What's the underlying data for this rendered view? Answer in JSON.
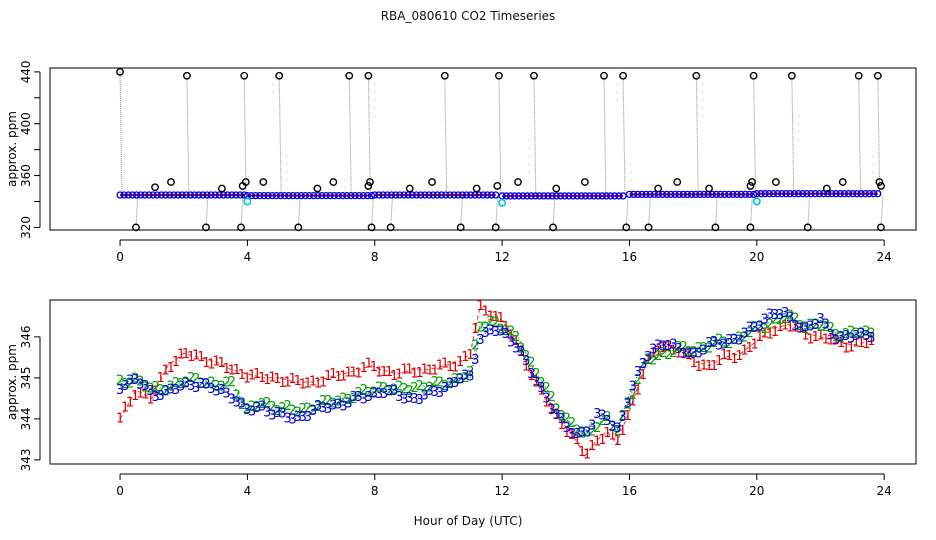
{
  "title": "RBA_080610  CO2 Timeseries",
  "xlabel": "Hour of Day (UTC)",
  "colors": {
    "raw": "#000000",
    "flag": "#00c8d8",
    "level1": "#e00000",
    "level2": "#00a000",
    "level3": "#0000e0",
    "connector": "#888888"
  },
  "chart_data": [
    {
      "type": "scatter",
      "title": "RBA_080610  CO2 Timeseries",
      "ylabel": "approx. ppm",
      "xlim": [
        -2.2,
        25
      ],
      "ylim": [
        318,
        443
      ],
      "xticks": [
        0,
        4,
        8,
        12,
        16,
        20,
        24
      ],
      "yticks": [
        320,
        360,
        400,
        440
      ],
      "yticks_minor": [
        340,
        380,
        420
      ],
      "baseline_segments": [
        {
          "x_start": 0.0,
          "x_end": 3.9,
          "value": 345
        },
        {
          "x_start": 4.0,
          "x_end": 7.9,
          "value": 344.5
        },
        {
          "x_start": 8.0,
          "x_end": 11.8,
          "value": 345
        },
        {
          "x_start": 12.0,
          "x_end": 15.8,
          "value": 344.3
        },
        {
          "x_start": 16.0,
          "x_end": 19.9,
          "value": 345.5
        },
        {
          "x_start": 20.0,
          "x_end": 23.8,
          "value": 346
        }
      ],
      "high_spikes": [
        {
          "x": 0.0,
          "y": 440
        },
        {
          "x": 2.1,
          "y": 437
        },
        {
          "x": 3.9,
          "y": 437
        },
        {
          "x": 5.0,
          "y": 437
        },
        {
          "x": 7.2,
          "y": 437
        },
        {
          "x": 7.8,
          "y": 437
        },
        {
          "x": 10.2,
          "y": 437
        },
        {
          "x": 11.9,
          "y": 437
        },
        {
          "x": 13.0,
          "y": 437
        },
        {
          "x": 15.2,
          "y": 437
        },
        {
          "x": 15.8,
          "y": 437
        },
        {
          "x": 18.1,
          "y": 437
        },
        {
          "x": 19.9,
          "y": 437
        },
        {
          "x": 21.1,
          "y": 437
        },
        {
          "x": 23.2,
          "y": 437
        },
        {
          "x": 23.8,
          "y": 437
        }
      ],
      "low_spikes": [
        {
          "x": 0.5,
          "y": 320
        },
        {
          "x": 2.7,
          "y": 320
        },
        {
          "x": 3.8,
          "y": 320
        },
        {
          "x": 5.6,
          "y": 320
        },
        {
          "x": 7.9,
          "y": 320
        },
        {
          "x": 8.5,
          "y": 320
        },
        {
          "x": 10.7,
          "y": 320
        },
        {
          "x": 11.8,
          "y": 320
        },
        {
          "x": 13.6,
          "y": 320
        },
        {
          "x": 15.9,
          "y": 320
        },
        {
          "x": 16.6,
          "y": 320
        },
        {
          "x": 18.7,
          "y": 320
        },
        {
          "x": 19.8,
          "y": 320
        },
        {
          "x": 21.6,
          "y": 320
        },
        {
          "x": 23.9,
          "y": 320
        }
      ],
      "mid_outliers": [
        {
          "x": 1.1,
          "y": 351
        },
        {
          "x": 1.6,
          "y": 355
        },
        {
          "x": 3.2,
          "y": 350
        },
        {
          "x": 3.85,
          "y": 352
        },
        {
          "x": 3.95,
          "y": 355
        },
        {
          "x": 4.5,
          "y": 355
        },
        {
          "x": 6.2,
          "y": 350
        },
        {
          "x": 6.7,
          "y": 355
        },
        {
          "x": 7.8,
          "y": 352
        },
        {
          "x": 7.85,
          "y": 355
        },
        {
          "x": 9.1,
          "y": 350
        },
        {
          "x": 9.8,
          "y": 355
        },
        {
          "x": 11.2,
          "y": 350
        },
        {
          "x": 11.85,
          "y": 352
        },
        {
          "x": 12.5,
          "y": 355
        },
        {
          "x": 13.7,
          "y": 350
        },
        {
          "x": 14.6,
          "y": 355
        },
        {
          "x": 16.9,
          "y": 350
        },
        {
          "x": 17.5,
          "y": 355
        },
        {
          "x": 18.5,
          "y": 350
        },
        {
          "x": 19.8,
          "y": 352
        },
        {
          "x": 19.85,
          "y": 355
        },
        {
          "x": 20.6,
          "y": 355
        },
        {
          "x": 22.2,
          "y": 350
        },
        {
          "x": 22.7,
          "y": 355
        },
        {
          "x": 23.85,
          "y": 355
        },
        {
          "x": 23.9,
          "y": 352
        }
      ],
      "flagged_points": [
        {
          "x": 4.0,
          "y": 340
        },
        {
          "x": 12.0,
          "y": 339
        },
        {
          "x": 20.0,
          "y": 340
        }
      ]
    },
    {
      "type": "scatter",
      "ylabel": "approx. ppm",
      "xlim": [
        -2.2,
        25
      ],
      "ylim": [
        342.9,
        346.9
      ],
      "xticks": [
        0,
        4,
        8,
        12,
        16,
        20,
        24
      ],
      "yticks": [
        343,
        344,
        345,
        346
      ],
      "marker_labels": [
        "1",
        "2",
        "3"
      ],
      "series": [
        {
          "name": "1",
          "x": [
            0.0,
            0.5,
            1.0,
            1.5,
            2.0,
            2.5,
            3.0,
            3.5,
            4.0,
            4.5,
            5.0,
            5.5,
            6.0,
            6.5,
            7.0,
            7.5,
            7.9,
            8.2,
            8.7,
            9.2,
            9.7,
            10.2,
            10.7,
            11.0,
            11.3,
            11.7,
            12.0,
            12.5,
            13.0,
            13.5,
            14.0,
            14.3,
            14.6,
            15.0,
            15.3,
            15.6,
            16.0,
            16.5,
            17.0,
            17.5,
            18.0,
            18.5,
            19.0,
            19.5,
            20.0,
            20.5,
            21.0,
            21.5,
            22.0,
            22.5,
            23.0,
            23.6
          ],
          "y": [
            344.0,
            344.7,
            344.5,
            345.3,
            345.6,
            345.5,
            345.4,
            345.2,
            345.1,
            345.0,
            345.0,
            344.9,
            344.9,
            345.0,
            345.1,
            345.2,
            345.3,
            345.2,
            345.1,
            345.2,
            345.2,
            345.3,
            345.4,
            345.6,
            346.7,
            346.6,
            346.4,
            345.8,
            345.0,
            344.3,
            343.8,
            343.5,
            343.1,
            343.5,
            343.7,
            343.4,
            344.2,
            345.3,
            345.8,
            345.7,
            345.4,
            345.3,
            345.5,
            345.6,
            345.9,
            346.2,
            346.3,
            346.1,
            346.0,
            345.9,
            345.8,
            345.9
          ]
        },
        {
          "name": "2",
          "x": [
            0.0,
            0.5,
            1.0,
            1.5,
            2.0,
            2.5,
            3.0,
            3.5,
            4.0,
            4.5,
            5.0,
            5.5,
            6.0,
            6.5,
            7.0,
            7.5,
            7.9,
            8.2,
            8.7,
            9.2,
            9.7,
            10.2,
            10.7,
            11.0,
            11.3,
            11.7,
            12.0,
            12.5,
            13.0,
            13.5,
            14.0,
            14.3,
            14.6,
            15.0,
            15.3,
            15.6,
            16.0,
            16.5,
            17.0,
            17.5,
            18.0,
            18.5,
            19.0,
            19.5,
            20.0,
            20.5,
            21.0,
            21.5,
            22.0,
            22.5,
            23.0,
            23.6
          ],
          "y": [
            344.9,
            345.0,
            344.7,
            344.8,
            344.9,
            345.0,
            344.8,
            344.9,
            344.2,
            344.4,
            344.3,
            344.2,
            344.3,
            344.4,
            344.5,
            344.6,
            344.7,
            344.8,
            344.7,
            344.8,
            344.8,
            344.9,
            345.0,
            345.1,
            346.3,
            346.4,
            346.2,
            346.0,
            345.2,
            344.6,
            344.0,
            343.8,
            343.6,
            343.9,
            344.0,
            343.7,
            344.5,
            345.4,
            345.6,
            345.7,
            345.7,
            345.8,
            345.9,
            346.0,
            346.2,
            346.4,
            346.5,
            346.3,
            346.3,
            346.1,
            346.1,
            346.1
          ]
        },
        {
          "name": "3",
          "x": [
            0.0,
            0.5,
            1.0,
            1.5,
            2.0,
            2.5,
            3.0,
            3.5,
            4.0,
            4.5,
            5.0,
            5.5,
            6.0,
            6.5,
            7.0,
            7.5,
            7.9,
            8.2,
            8.7,
            9.2,
            9.7,
            10.2,
            10.7,
            11.0,
            11.3,
            11.7,
            12.0,
            12.5,
            13.0,
            13.5,
            14.0,
            14.3,
            14.6,
            15.0,
            15.3,
            15.6,
            16.0,
            16.5,
            17.0,
            17.5,
            18.0,
            18.5,
            19.0,
            19.5,
            20.0,
            20.5,
            21.0,
            21.5,
            22.0,
            22.5,
            23.0,
            23.6
          ],
          "y": [
            344.8,
            345.0,
            344.6,
            344.7,
            344.8,
            344.9,
            344.7,
            344.6,
            344.2,
            344.3,
            344.1,
            344.0,
            344.2,
            344.3,
            344.4,
            344.5,
            344.6,
            344.7,
            344.6,
            344.5,
            344.6,
            344.8,
            345.0,
            345.0,
            346.0,
            346.2,
            346.1,
            345.8,
            345.0,
            344.4,
            343.8,
            343.6,
            343.7,
            344.1,
            344.0,
            343.7,
            344.6,
            345.5,
            345.9,
            345.7,
            345.6,
            345.8,
            345.9,
            346.0,
            346.3,
            346.6,
            346.5,
            346.2,
            346.4,
            346.0,
            346.0,
            346.1
          ]
        }
      ]
    }
  ]
}
